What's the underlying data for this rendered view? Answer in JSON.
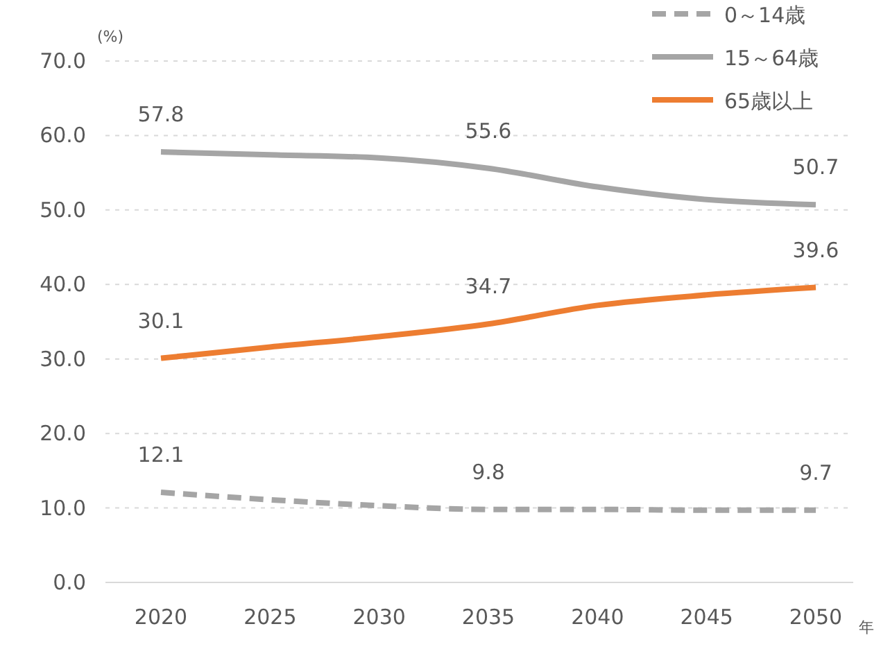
{
  "chart_data": {
    "type": "line",
    "xlabel": "年",
    "ylabel": "(%)",
    "categories": [
      "2020",
      "2025",
      "2030",
      "2035",
      "2040",
      "2045",
      "2050"
    ],
    "series": [
      {
        "name": "0～14歳",
        "color": "#a5a5a5",
        "line_style": "dashed",
        "values": [
          12.1,
          11.1,
          10.3,
          9.8,
          9.8,
          9.7,
          9.7
        ],
        "value_labels": [
          "12.1",
          null,
          null,
          "9.8",
          null,
          null,
          "9.7"
        ]
      },
      {
        "name": "15～64歳",
        "color": "#a5a5a5",
        "line_style": "solid",
        "values": [
          57.8,
          57.4,
          57.0,
          55.6,
          53.1,
          51.4,
          50.7
        ],
        "value_labels": [
          "57.8",
          null,
          null,
          "55.6",
          null,
          null,
          "50.7"
        ]
      },
      {
        "name": "65歳以上",
        "color": "#ed7d31",
        "line_style": "solid",
        "values": [
          30.1,
          31.6,
          33.0,
          34.7,
          37.2,
          38.6,
          39.6
        ],
        "value_labels": [
          "30.1",
          null,
          null,
          "34.7",
          null,
          null,
          "39.6"
        ]
      }
    ],
    "ylim": [
      0,
      70
    ],
    "yticks": [
      {
        "value": 0,
        "label": "0.0"
      },
      {
        "value": 10,
        "label": "10.0"
      },
      {
        "value": 20,
        "label": "20.0"
      },
      {
        "value": 30,
        "label": "30.0"
      },
      {
        "value": 40,
        "label": "40.0"
      },
      {
        "value": 50,
        "label": "50.0"
      },
      {
        "value": 60,
        "label": "60.0"
      },
      {
        "value": 70,
        "label": "70.0"
      }
    ],
    "grid": "y",
    "legend": "top right",
    "marker": "none"
  }
}
